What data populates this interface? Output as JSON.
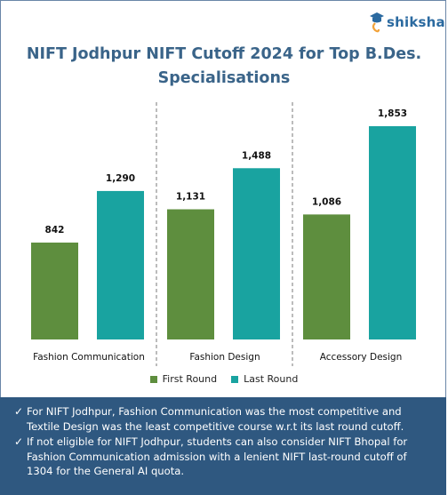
{
  "brand": {
    "name": "shiksha"
  },
  "title_line1": "NIFT Jodhpur NIFT Cutoff 2024 for Top B.Des.",
  "title_line2": "Specialisations",
  "colors": {
    "first_round": "#5e8e3e",
    "last_round": "#19a3a0",
    "notes_bg": "#2f5880",
    "title": "#3a6489"
  },
  "chart_data": {
    "type": "bar",
    "title": "NIFT Jodhpur NIFT Cutoff 2024 for Top B.Des. Specialisations",
    "categories": [
      "Fashion Communication",
      "Fashion Design",
      "Accessory Design"
    ],
    "series": [
      {
        "name": "First Round",
        "values": [
          842,
          1131,
          1086
        ]
      },
      {
        "name": "Last Round",
        "values": [
          1290,
          1488,
          1853
        ]
      }
    ],
    "legend": "bottom",
    "grid": false
  },
  "notes": [
    "For NIFT Jodhpur, Fashion Communication was the most competitive and Textile Design was the least competitive course w.r.t its last round cutoff.",
    "If not eligible for NIFT Jodhpur, students can also consider NIFT Bhopal for Fashion Communication admission with a lenient NIFT last-round cutoff of 1304 for the General AI quota."
  ]
}
